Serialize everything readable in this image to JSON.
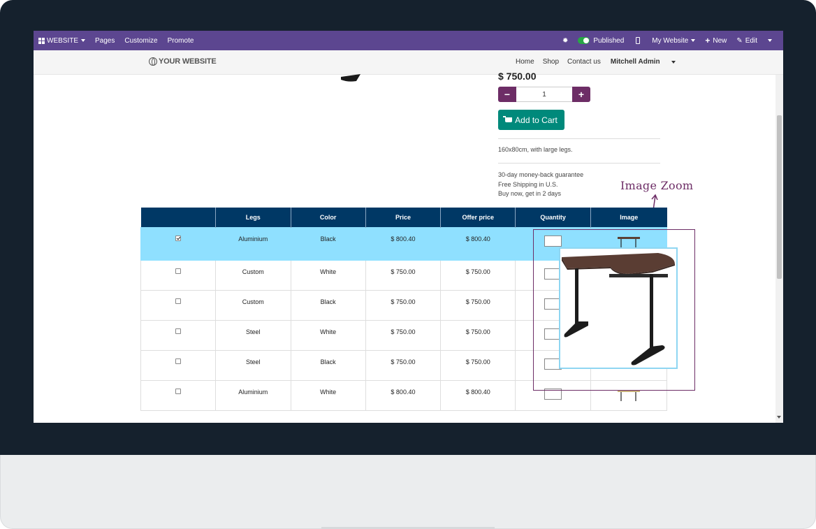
{
  "topbar": {
    "website": "WEBSITE",
    "pages": "Pages",
    "customize": "Customize",
    "promote": "Promote",
    "published": "Published",
    "my_website": "My Website",
    "new": "New",
    "edit": "Edit"
  },
  "site": {
    "logo": "YOUR WEBSITE",
    "nav": {
      "home": "Home",
      "shop": "Shop",
      "contact": "Contact us",
      "user": "Mitchell Admin"
    }
  },
  "product": {
    "price": "$ 750.00",
    "quantity": "1",
    "add_to_cart": "Add to Cart",
    "description": "160x80cm, with large legs.",
    "terms": [
      "30-day money-back guarantee",
      "Free Shipping in U.S.",
      "Buy now, get in 2 days"
    ]
  },
  "annotation": {
    "label": "Image Zoom"
  },
  "table": {
    "headers": [
      "",
      "Legs",
      "Color",
      "Price",
      "Offer price",
      "Quantity",
      "Image"
    ],
    "rows": [
      {
        "checked": true,
        "legs": "Aluminium",
        "color": "Black",
        "price": "$ 800.40",
        "offer": "$ 800.40"
      },
      {
        "checked": false,
        "legs": "Custom",
        "color": "White",
        "price": "$ 750.00",
        "offer": "$ 750.00"
      },
      {
        "checked": false,
        "legs": "Custom",
        "color": "Black",
        "price": "$ 750.00",
        "offer": "$ 750.00"
      },
      {
        "checked": false,
        "legs": "Steel",
        "color": "White",
        "price": "$ 750.00",
        "offer": "$ 750.00"
      },
      {
        "checked": false,
        "legs": "Steel",
        "color": "Black",
        "price": "$ 750.00",
        "offer": "$ 750.00"
      },
      {
        "checked": false,
        "legs": "Aluminium",
        "color": "White",
        "price": "$ 800.40",
        "offer": "$ 800.40"
      }
    ]
  },
  "colors": {
    "topbar": "#5c4690",
    "accent": "#6d2d66",
    "cart": "#00897b",
    "table_header": "#003865",
    "row_selected": "#8fe0ff"
  }
}
